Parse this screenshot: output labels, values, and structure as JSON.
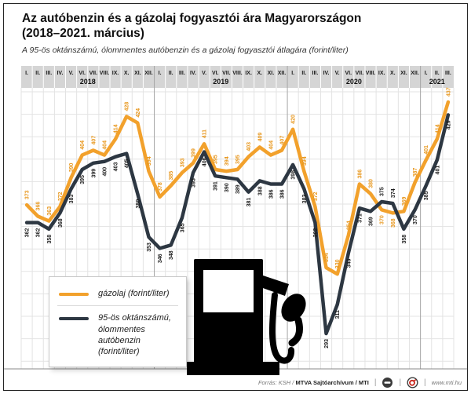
{
  "title": "Az autóbenzin és a gázolaj fogyasztói ára Magyarországon",
  "title_line2": "(2018–2021. március)",
  "subtitle": "A 95-ös oktánszámú, ólommentes autóbenzin és a gázolaj fogyasztói átlagára (forint/liter)",
  "chart_data": {
    "type": "line",
    "unit": "forint/liter",
    "months": [
      "I.",
      "II.",
      "III.",
      "IV.",
      "V.",
      "VI.",
      "VII.",
      "VIII.",
      "IX.",
      "X.",
      "XI.",
      "XII."
    ],
    "year_groups": [
      {
        "label": "2018",
        "count": 12
      },
      {
        "label": "2019",
        "count": 12
      },
      {
        "label": "2020",
        "count": 12
      },
      {
        "label": "2021",
        "count": 3
      }
    ],
    "ylim": [
      280,
      450
    ],
    "grid": true,
    "legend_position": "bottom-left",
    "series": [
      {
        "key": "diesel",
        "name": "gázolaj (forint/liter)",
        "color": "#F2A12C",
        "label_color": "#E8981F",
        "values": [
          373,
          366,
          363,
          372,
          390,
          404,
          407,
          404,
          414,
          428,
          424,
          394,
          378,
          385,
          393,
          399,
          411,
          395,
          394,
          395,
          403,
          409,
          404,
          407,
          420,
          394,
          372,
          334,
          330,
          354,
          386,
          380,
          370,
          368,
          369,
          387,
          401,
          414,
          437
        ]
      },
      {
        "key": "petrol",
        "name": "95-ös oktánszámú, ólommentes autóbenzin (forint/liter)",
        "color": "#2D3742",
        "label_color": "#1E1E1E",
        "values": [
          362,
          362,
          358,
          368,
          383,
          395,
          399,
          400,
          403,
          405,
          380,
          353,
          346,
          348,
          365,
          393,
          406,
          391,
          390,
          389,
          381,
          388,
          386,
          386,
          398,
          383,
          362,
          293,
          311,
          343,
          371,
          369,
          375,
          374,
          358,
          370,
          385,
          401,
          429
        ]
      }
    ]
  },
  "legend": {
    "items": [
      {
        "key": "diesel",
        "label": "gázolaj (forint/liter)"
      },
      {
        "key": "petrol",
        "lines": [
          "95-ös oktánszámú,",
          "ólommentes autóbenzin",
          "(forint/liter)"
        ]
      }
    ]
  },
  "footer": {
    "source_prefix": "Forrás: KSH / ",
    "source_bold": "MTVA Sajtóarchívum / MTI",
    "separator": "|",
    "website": "www.mti.hu",
    "icons": [
      "mtva-logo",
      "mti-logo"
    ]
  },
  "colors": {
    "header_band": "#D5D5D5",
    "gridline": "#E3E3E3",
    "year_separator": "#A6A6A6",
    "bottom_rule": "#8A8A8A",
    "pump": "#000000",
    "mti_red": "#C9281E"
  }
}
